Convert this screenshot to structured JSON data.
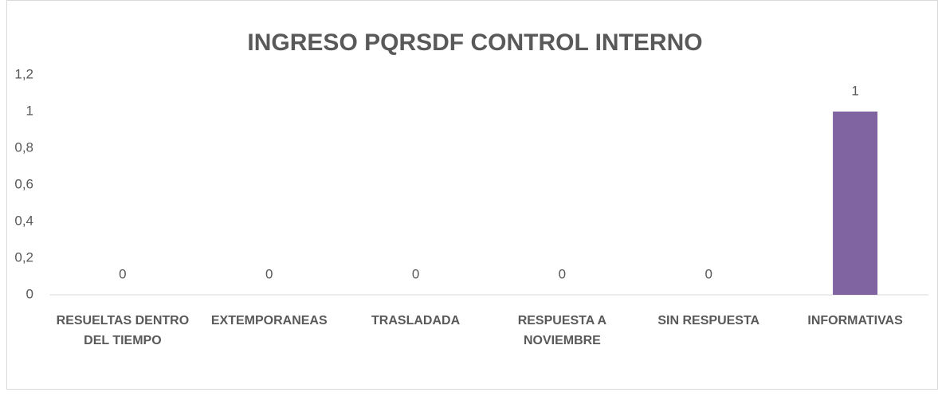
{
  "chart_data": {
    "type": "bar",
    "title": "INGRESO  PQRSDF CONTROL INTERNO",
    "categories": [
      "RESUELTAS DENTRO DEL TIEMPO",
      "EXTEMPORANEAS",
      "TRASLADADA",
      "RESPUESTA A NOVIEMBRE",
      "SIN RESPUESTA",
      "INFORMATIVAS"
    ],
    "values": [
      0,
      0,
      0,
      0,
      0,
      1
    ],
    "color": "#8064a2",
    "ylim": [
      0,
      1.2
    ],
    "yticks": [
      0,
      {
        "value": 0.2,
        "label": "0,2"
      },
      {
        "value": 0.4,
        "label": "0,4"
      },
      {
        "value": 0.6,
        "label": "0,6"
      },
      {
        "value": 0.8,
        "label": "0,8"
      },
      1,
      {
        "value": 1.2,
        "label": "1,2"
      }
    ],
    "grid": false
  }
}
